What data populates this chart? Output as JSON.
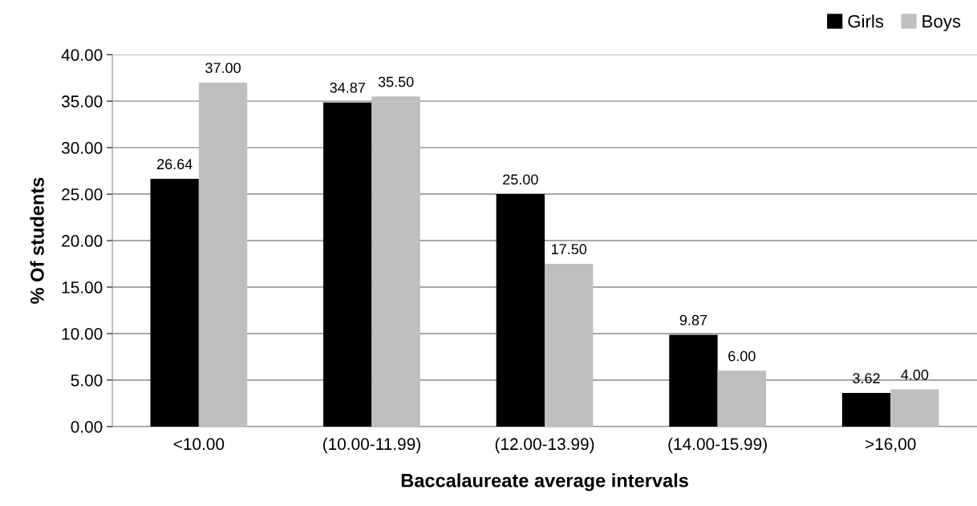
{
  "chart_data": {
    "type": "bar",
    "xlabel": "Baccalaureate average intervals",
    "ylabel": "% Of students",
    "categories": [
      "<10.00",
      "(10.00-11.99)",
      "(12.00-13.99)",
      "(14.00-15.99)",
      ">16,00"
    ],
    "series": [
      {
        "name": "Girls",
        "color": "#000000",
        "values": [
          26.64,
          34.87,
          25.0,
          9.87,
          3.62
        ],
        "value_labels": [
          "26.64",
          "34.87",
          "25.00",
          "9.87",
          "3.62"
        ]
      },
      {
        "name": "Boys",
        "color": "#bfbfbf",
        "values": [
          37.0,
          35.5,
          17.5,
          6.0,
          4.0
        ],
        "value_labels": [
          "37.00",
          "35.50",
          "17.50",
          "6.00",
          "4.00"
        ]
      }
    ],
    "ylim": [
      0,
      40
    ],
    "yticks": [
      {
        "value": 0,
        "label": "0.00"
      },
      {
        "value": 5,
        "label": "5.00"
      },
      {
        "value": 10,
        "label": "10.00"
      },
      {
        "value": 15,
        "label": "15.00"
      },
      {
        "value": 20,
        "label": "20.00"
      },
      {
        "value": 25,
        "label": "25.00"
      },
      {
        "value": 30,
        "label": "30.00"
      },
      {
        "value": 35,
        "label": "35.00"
      },
      {
        "value": 40,
        "label": "40.00"
      }
    ],
    "grid": "y",
    "legend": "top right"
  }
}
